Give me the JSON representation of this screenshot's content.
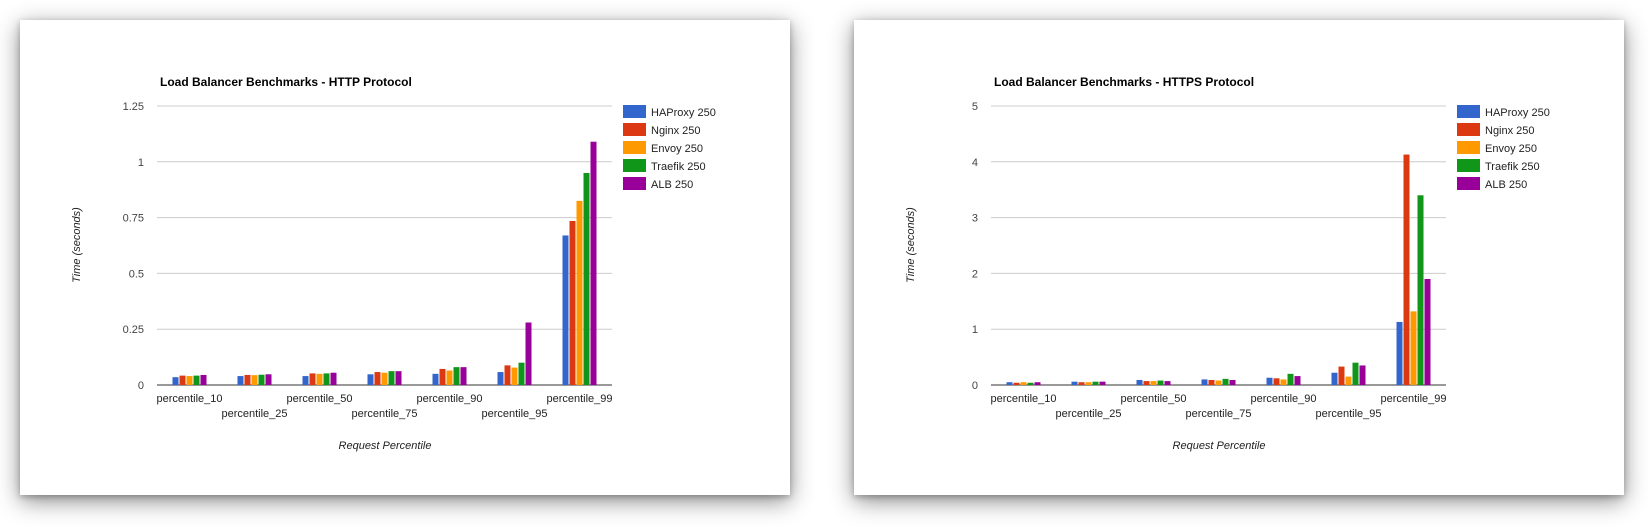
{
  "chart_data": [
    {
      "type": "bar",
      "title": "Load Balancer Benchmarks - HTTP Protocol",
      "xlabel": "Request Percentile",
      "ylabel": "Time (seconds)",
      "ylim": [
        0,
        1.25
      ],
      "yticks": [
        "0",
        "0.25",
        "0.5",
        "0.75",
        "1",
        "1.25"
      ],
      "grid": true,
      "legend_position": "right",
      "categories": [
        "percentile_10",
        "percentile_25",
        "percentile_50",
        "percentile_75",
        "percentile_90",
        "percentile_95",
        "percentile_99"
      ],
      "series": [
        {
          "name": "HAProxy 250",
          "color": "#3366cc",
          "values": [
            0.035,
            0.04,
            0.04,
            0.048,
            0.05,
            0.058,
            0.67
          ]
        },
        {
          "name": "Nginx 250",
          "color": "#dc3912",
          "values": [
            0.042,
            0.045,
            0.052,
            0.058,
            0.072,
            0.088,
            0.735
          ]
        },
        {
          "name": "Envoy 250",
          "color": "#ff9900",
          "values": [
            0.04,
            0.044,
            0.05,
            0.055,
            0.065,
            0.078,
            0.825
          ]
        },
        {
          "name": "Traefik 250",
          "color": "#109618",
          "values": [
            0.042,
            0.046,
            0.052,
            0.062,
            0.08,
            0.1,
            0.95
          ]
        },
        {
          "name": "ALB 250",
          "color": "#990099",
          "values": [
            0.045,
            0.048,
            0.055,
            0.062,
            0.08,
            0.28,
            1.09
          ]
        }
      ]
    },
    {
      "type": "bar",
      "title": "Load Balancer Benchmarks - HTTPS Protocol",
      "xlabel": "Request Percentile",
      "ylabel": "Time (seconds)",
      "ylim": [
        0,
        5
      ],
      "yticks": [
        "0",
        "1",
        "2",
        "3",
        "4",
        "5"
      ],
      "grid": true,
      "legend_position": "right",
      "categories": [
        "percentile_10",
        "percentile_25",
        "percentile_50",
        "percentile_75",
        "percentile_90",
        "percentile_95",
        "percentile_99"
      ],
      "series": [
        {
          "name": "HAProxy 250",
          "color": "#3366cc",
          "values": [
            0.05,
            0.06,
            0.09,
            0.1,
            0.13,
            0.22,
            1.13
          ]
        },
        {
          "name": "Nginx 250",
          "color": "#dc3912",
          "values": [
            0.04,
            0.05,
            0.07,
            0.09,
            0.12,
            0.33,
            4.13
          ]
        },
        {
          "name": "Envoy 250",
          "color": "#ff9900",
          "values": [
            0.05,
            0.05,
            0.07,
            0.08,
            0.1,
            0.15,
            1.32
          ]
        },
        {
          "name": "Traefik 250",
          "color": "#109618",
          "values": [
            0.04,
            0.06,
            0.08,
            0.11,
            0.2,
            0.4,
            3.4
          ]
        },
        {
          "name": "ALB 250",
          "color": "#990099",
          "values": [
            0.05,
            0.06,
            0.07,
            0.09,
            0.16,
            0.35,
            1.9
          ]
        }
      ]
    }
  ]
}
